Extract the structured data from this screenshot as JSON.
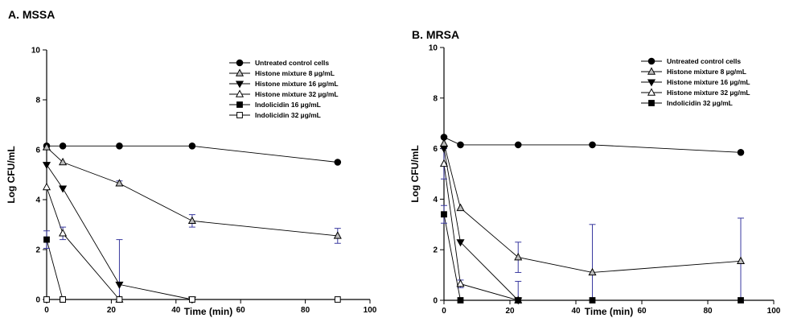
{
  "figure": {
    "panels": [
      "A. MSSA",
      "B. MRSA"
    ]
  },
  "chart_data": [
    {
      "type": "line",
      "title": "A. MSSA",
      "xlabel": "Time (min)",
      "ylabel": "Log CFU/mL",
      "xlim": [
        0,
        100
      ],
      "ylim": [
        0,
        10
      ],
      "xticks": [
        0,
        20,
        40,
        60,
        80,
        100
      ],
      "yticks": [
        0,
        2,
        4,
        6,
        8,
        10
      ],
      "grid": false,
      "legend_position": "top-right",
      "series": [
        {
          "name": "Untreated control cells",
          "marker": "filled-circle",
          "x": [
            0,
            5,
            22.5,
            45,
            90
          ],
          "y": [
            6.15,
            6.15,
            6.15,
            6.15,
            5.5
          ],
          "err": [
            0,
            0,
            0,
            0,
            0
          ]
        },
        {
          "name": "Histone mixture 8 µg/mL",
          "marker": "gray-triangle-up",
          "x": [
            0,
            5,
            22.5,
            45,
            90
          ],
          "y": [
            6.1,
            5.5,
            4.65,
            3.15,
            2.55
          ],
          "err": [
            0,
            0,
            0.1,
            0.25,
            0.3
          ]
        },
        {
          "name": "Histone mixture 16 µg/mL",
          "marker": "filled-triangle-down",
          "x": [
            0,
            5,
            22.5,
            45
          ],
          "y": [
            5.4,
            4.45,
            0.6,
            0
          ],
          "err": [
            0,
            0,
            1.8,
            0
          ]
        },
        {
          "name": "Histone mixture 32 µg/mL",
          "marker": "open-triangle-up",
          "x": [
            0,
            5,
            22.5
          ],
          "y": [
            4.5,
            2.65,
            0
          ],
          "err": [
            0,
            0.25,
            0
          ]
        },
        {
          "name": "Indolicidin 16 µg/mL",
          "marker": "filled-square",
          "x": [
            0,
            5
          ],
          "y": [
            2.4,
            0
          ],
          "err": [
            0.35,
            0
          ]
        },
        {
          "name": "Indolicidin 32 µg/mL",
          "marker": "open-square",
          "x": [
            0,
            5,
            22.5,
            45,
            90
          ],
          "y": [
            0,
            0,
            0,
            0,
            0
          ],
          "err": [
            0,
            0,
            0,
            0,
            0
          ]
        }
      ]
    },
    {
      "type": "line",
      "title": "B. MRSA",
      "xlabel": "Time (min)",
      "ylabel": "Log CFU/mL",
      "xlim": [
        0,
        100
      ],
      "ylim": [
        0,
        10
      ],
      "xticks": [
        0,
        20,
        40,
        60,
        80,
        100
      ],
      "yticks": [
        0,
        2,
        4,
        6,
        8,
        10
      ],
      "grid": false,
      "legend_position": "top-right",
      "series": [
        {
          "name": "Untreated control cells",
          "marker": "filled-circle",
          "x": [
            0,
            5,
            22.5,
            45,
            90
          ],
          "y": [
            6.45,
            6.15,
            6.15,
            6.15,
            5.85
          ],
          "err": [
            0,
            0,
            0,
            0,
            0
          ]
        },
        {
          "name": "Histone mixture 8 µg/mL",
          "marker": "gray-triangle-up",
          "x": [
            0,
            5,
            22.5,
            45,
            90
          ],
          "y": [
            6.2,
            3.65,
            1.7,
            1.1,
            1.55
          ],
          "err": [
            0,
            0,
            0.6,
            1.9,
            1.7
          ]
        },
        {
          "name": "Histone mixture 16 µg/mL",
          "marker": "filled-triangle-down",
          "x": [
            0,
            5,
            22.5
          ],
          "y": [
            6.0,
            2.3,
            0
          ],
          "err": [
            0,
            0,
            0.75
          ]
        },
        {
          "name": "Histone mixture 32 µg/mL",
          "marker": "open-triangle-up",
          "x": [
            0,
            5,
            22.5
          ],
          "y": [
            5.4,
            0.65,
            0
          ],
          "err": [
            0.6,
            0.15,
            0
          ]
        },
        {
          "name": "Indolicidin 32 µg/mL",
          "marker": "filled-square",
          "x": [
            0,
            5,
            22.5,
            45,
            90
          ],
          "y": [
            3.4,
            0,
            0,
            0,
            0
          ],
          "err": [
            0.35,
            0,
            0,
            0,
            0
          ]
        }
      ]
    }
  ]
}
